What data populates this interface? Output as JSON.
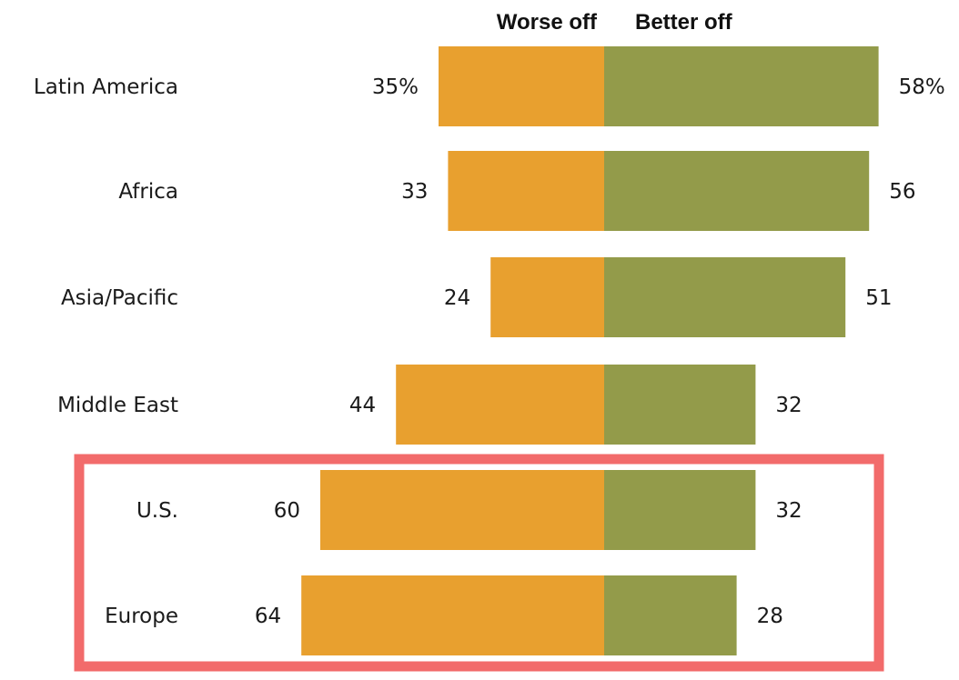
{
  "chart_data": {
    "type": "bar",
    "orientation": "horizontal-diverging",
    "categories": [
      "Latin America",
      "Africa",
      "Asia/Pacific",
      "Middle East",
      "U.S.",
      "Europe"
    ],
    "series": [
      {
        "name": "Worse off",
        "values": [
          35,
          33,
          24,
          44,
          60,
          64
        ],
        "labels": [
          "35%",
          "33",
          "24",
          "44",
          "60",
          "64"
        ]
      },
      {
        "name": "Better off",
        "values": [
          58,
          56,
          51,
          32,
          32,
          28
        ],
        "labels": [
          "58%",
          "56",
          "51",
          "32",
          "32",
          "28"
        ]
      }
    ],
    "unit": "%",
    "legend_placement": "top",
    "grid": false,
    "highlight": {
      "categories": [
        "U.S.",
        "Europe"
      ],
      "color": "#f26b6b"
    }
  },
  "colors": {
    "worse_off": "#e8a02f",
    "better_off": "#939b4a",
    "highlight_box": "#f26b6b"
  }
}
